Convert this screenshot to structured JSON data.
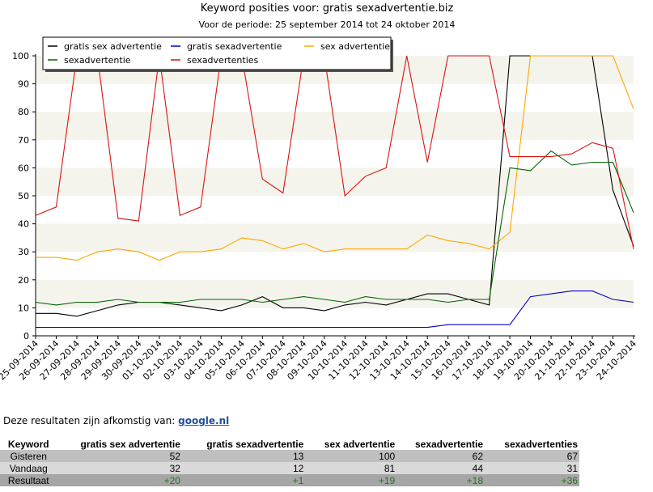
{
  "chart_data": {
    "type": "line",
    "title": "Keyword posities voor: gratis sexadvertentie.biz",
    "subtitle": "Voor de periode: 25 september 2014 tot 24 oktober 2014",
    "categories": [
      "25-09-2014",
      "26-09-2014",
      "27-09-2014",
      "28-09-2014",
      "29-09-2014",
      "30-09-2014",
      "01-10-2014",
      "02-10-2014",
      "03-10-2014",
      "04-10-2014",
      "05-10-2014",
      "06-10-2014",
      "07-10-2014",
      "08-10-2014",
      "09-10-2014",
      "10-10-2014",
      "11-10-2014",
      "12-10-2014",
      "13-10-2014",
      "14-10-2014",
      "15-10-2014",
      "16-10-2014",
      "17-10-2014",
      "18-10-2014",
      "19-10-2014",
      "20-10-2014",
      "21-10-2014",
      "22-10-2014",
      "23-10-2014",
      "24-10-2014"
    ],
    "ylim": [
      0,
      100
    ],
    "yticks": [
      0,
      10,
      20,
      30,
      40,
      50,
      60,
      70,
      80,
      90,
      100
    ],
    "grid": "alternating horizontal bands",
    "legend": "top-left",
    "series": [
      {
        "name": "gratis sex advertentie",
        "color": "#000000",
        "values": [
          8,
          8,
          7,
          9,
          11,
          12,
          12,
          11,
          10,
          9,
          11,
          14,
          10,
          10,
          9,
          11,
          12,
          11,
          13,
          15,
          15,
          13,
          11,
          100,
          100,
          null,
          null,
          100,
          52,
          32
        ]
      },
      {
        "name": "gratis sexadvertentie",
        "color": "#0000cc",
        "values": [
          3,
          3,
          3,
          3,
          3,
          3,
          3,
          3,
          3,
          3,
          3,
          3,
          3,
          3,
          3,
          3,
          3,
          3,
          3,
          3,
          4,
          4,
          4,
          4,
          14,
          15,
          16,
          16,
          13,
          12
        ]
      },
      {
        "name": "sex advertentie",
        "color": "#ffa500",
        "values": [
          28,
          28,
          27,
          30,
          31,
          30,
          27,
          30,
          30,
          31,
          35,
          34,
          31,
          33,
          30,
          31,
          31,
          31,
          31,
          36,
          34,
          33,
          31,
          37,
          100,
          100,
          100,
          100,
          100,
          81
        ]
      },
      {
        "name": "sexadvertentie",
        "color": "#006600",
        "values": [
          12,
          11,
          12,
          12,
          13,
          12,
          12,
          12,
          13,
          13,
          13,
          12,
          13,
          14,
          13,
          12,
          14,
          13,
          13,
          13,
          12,
          13,
          13,
          60,
          59,
          66,
          61,
          62,
          62,
          44
        ]
      },
      {
        "name": "sexadvertenties",
        "color": "#dd1111",
        "values": [
          43,
          46,
          100,
          100,
          42,
          41,
          100,
          43,
          46,
          100,
          100,
          56,
          51,
          100,
          100,
          50,
          57,
          60,
          100,
          62,
          100,
          100,
          100,
          64,
          64,
          64,
          65,
          69,
          67,
          31
        ]
      }
    ]
  },
  "source": {
    "text": "Deze resultaten zijn afkomstig van:",
    "link": "google.nl"
  },
  "results": {
    "headers": [
      "Keyword",
      "gratis sex advertentie",
      "gratis sexadvertentie",
      "sex advertentie",
      "sexadvertentie",
      "sexadvertenties"
    ],
    "rows": [
      {
        "label": "Gisteren",
        "values": [
          "52",
          "13",
          "100",
          "62",
          "67"
        ]
      },
      {
        "label": "Vandaag",
        "values": [
          "32",
          "12",
          "81",
          "44",
          "31"
        ]
      },
      {
        "label": "Resultaat",
        "values": [
          "+20",
          "+1",
          "+19",
          "+18",
          "+36"
        ]
      }
    ]
  }
}
